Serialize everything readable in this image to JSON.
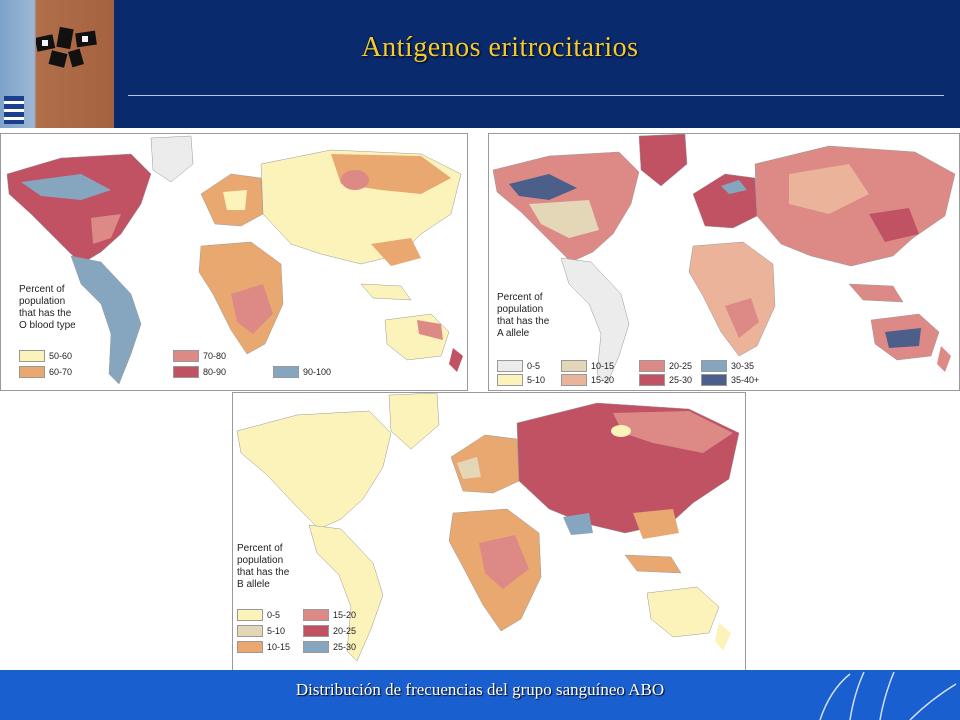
{
  "slide": {
    "title": "Antígenos eritrocitarios",
    "footer": "Distribución de frecuencias del grupo sanguíneo ABO"
  },
  "maps": {
    "o_blood_type": {
      "caption": "Percent of\npopulation\nthat has the\nO blood type",
      "legend": [
        {
          "label": "50-60",
          "color": "#fbf3b9"
        },
        {
          "label": "60-70",
          "color": "#e8a870"
        },
        {
          "label": "70-80",
          "color": "#dd8a86"
        },
        {
          "label": "80-90",
          "color": "#c05264"
        },
        {
          "label": "90-100",
          "color": "#86a6c0"
        }
      ]
    },
    "a_allele": {
      "caption": "Percent of\npopulation\nthat has the\nA allele",
      "legend": [
        {
          "label": "0-5",
          "color": "#ececec"
        },
        {
          "label": "5-10",
          "color": "#fbf3b9"
        },
        {
          "label": "10-15",
          "color": "#e3d7b8"
        },
        {
          "label": "15-20",
          "color": "#eab39a"
        },
        {
          "label": "20-25",
          "color": "#dd8a86"
        },
        {
          "label": "25-30",
          "color": "#c05264"
        },
        {
          "label": "30-35",
          "color": "#86a6c0"
        },
        {
          "label": "35-40+",
          "color": "#4b5f8a"
        }
      ]
    },
    "b_allele": {
      "caption": "Percent of\npopulation\nthat has the\nB allele",
      "legend": [
        {
          "label": "0-5",
          "color": "#fbf3b9"
        },
        {
          "label": "5-10",
          "color": "#e3d7b8"
        },
        {
          "label": "10-15",
          "color": "#e8a870"
        },
        {
          "label": "15-20",
          "color": "#dd8a86"
        },
        {
          "label": "20-25",
          "color": "#c05264"
        },
        {
          "label": "25-30",
          "color": "#86a6c0"
        }
      ]
    }
  }
}
